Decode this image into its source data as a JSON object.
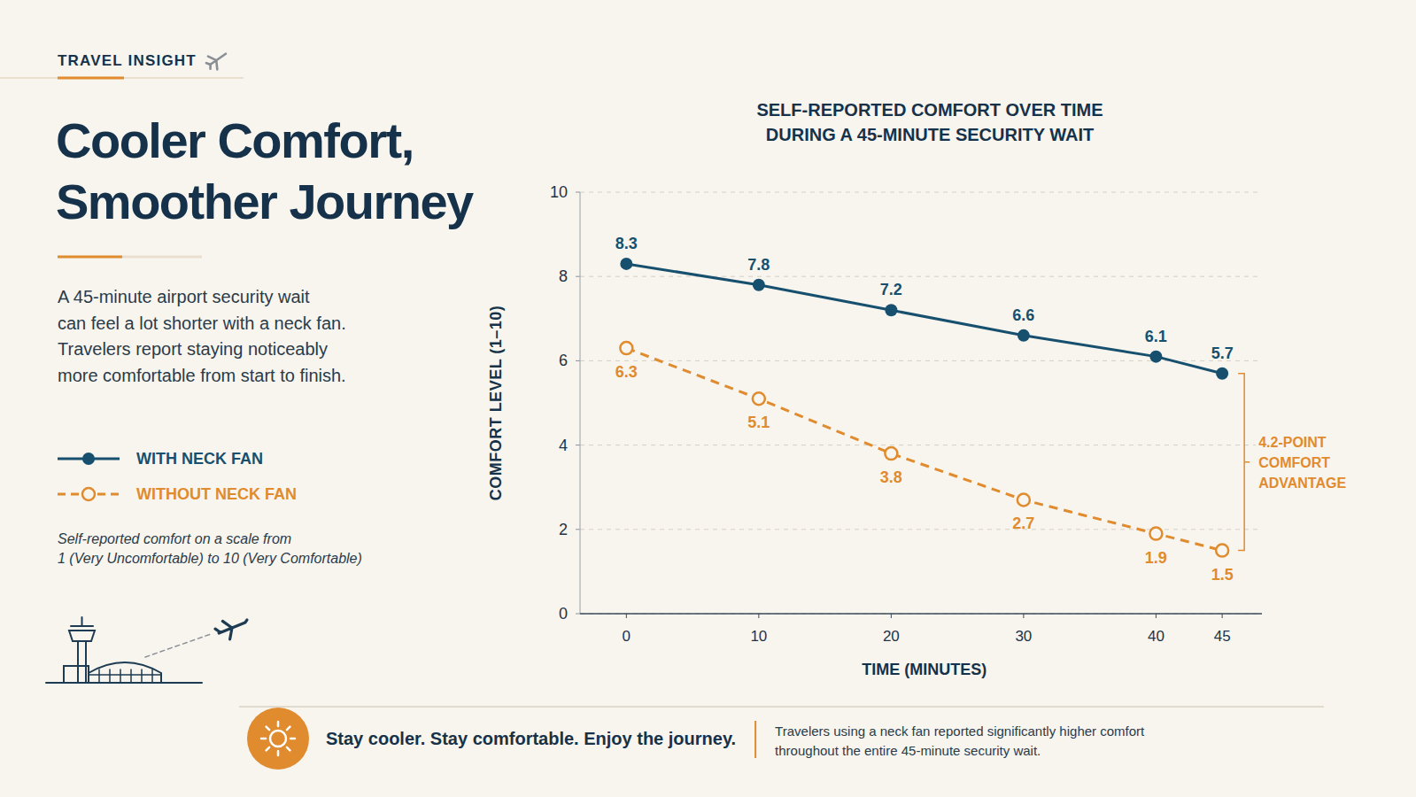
{
  "page": {
    "kicker": "TRAVEL INSIGHT",
    "title": [
      "Cooler Comfort,",
      "Smoother Journey"
    ],
    "intro": [
      "A 45-minute airport security wait",
      "can feel a lot shorter with a neck fan.",
      "Travelers report staying noticeably",
      "more comfortable from start to finish."
    ],
    "note": [
      "Self-reported comfort on a scale from",
      "1 (Very Uncomfortable) to 10 (Very Comfortable)"
    ],
    "tagline": "Stay cooler. Stay comfortable. Enjoy the journey.",
    "footnote": [
      "Travelers using a neck fan reported significantly higher comfort",
      "throughout the entire 45-minute security wait."
    ]
  },
  "chart_data": {
    "type": "line",
    "title": "SELF-REPORTED COMFORT OVER TIME DURING A 45-MINUTE SECURITY WAIT",
    "x_label": "TIME (MINUTES)",
    "y_label": "COMFORT LEVEL (1–10)",
    "x": [
      0,
      10,
      20,
      30,
      40,
      45
    ],
    "xlim": [
      -3.5,
      48
    ],
    "xticks": [
      0,
      10,
      20,
      30,
      40,
      45
    ],
    "ylim": [
      0,
      10
    ],
    "yticks": [
      0,
      2,
      4,
      6,
      8,
      10
    ],
    "grid": true,
    "legend": "left",
    "data_labels": true,
    "series": [
      {
        "name": "WITH NECK FAN",
        "color": "#17506e",
        "values": [
          8.3,
          7.8,
          7.2,
          6.6,
          6.1,
          5.7
        ],
        "marker": "circle",
        "line_style": "solid"
      },
      {
        "name": "WITHOUT NECK FAN",
        "color": "#e08b2d",
        "values": [
          6.3,
          5.1,
          3.8,
          2.7,
          1.9,
          1.5
        ],
        "marker": "open_circle",
        "line_style": "dashed"
      }
    ],
    "annotations": [
      {
        "text": "4.2-POINT COMFORT ADVANTAGE"
      }
    ]
  }
}
